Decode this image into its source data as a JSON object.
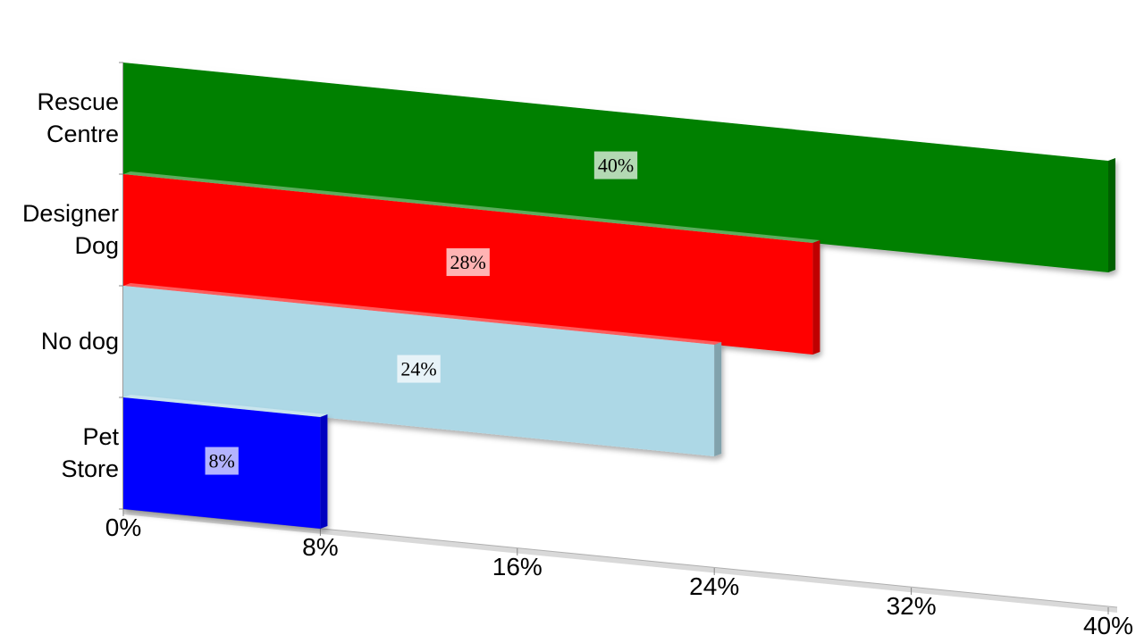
{
  "chart_data": {
    "type": "bar",
    "orientation": "horizontal",
    "categories": [
      "Rescue Centre",
      "Designer Dog",
      "No dog",
      "Pet Store"
    ],
    "values": [
      40,
      28,
      24,
      8
    ],
    "value_labels": [
      "40%",
      "28%",
      "24%",
      "8%"
    ],
    "colors": [
      "#008000",
      "#ff0000",
      "#add8e6",
      "#0000ff"
    ],
    "xlim": [
      0,
      40
    ],
    "xticks": [
      {
        "value": 0,
        "label": "0%"
      },
      {
        "value": 8,
        "label": "8%"
      },
      {
        "value": 16,
        "label": "16%"
      },
      {
        "value": 24,
        "label": "24%"
      },
      {
        "value": 32,
        "label": "32%"
      },
      {
        "value": 40,
        "label": "40%"
      }
    ]
  }
}
